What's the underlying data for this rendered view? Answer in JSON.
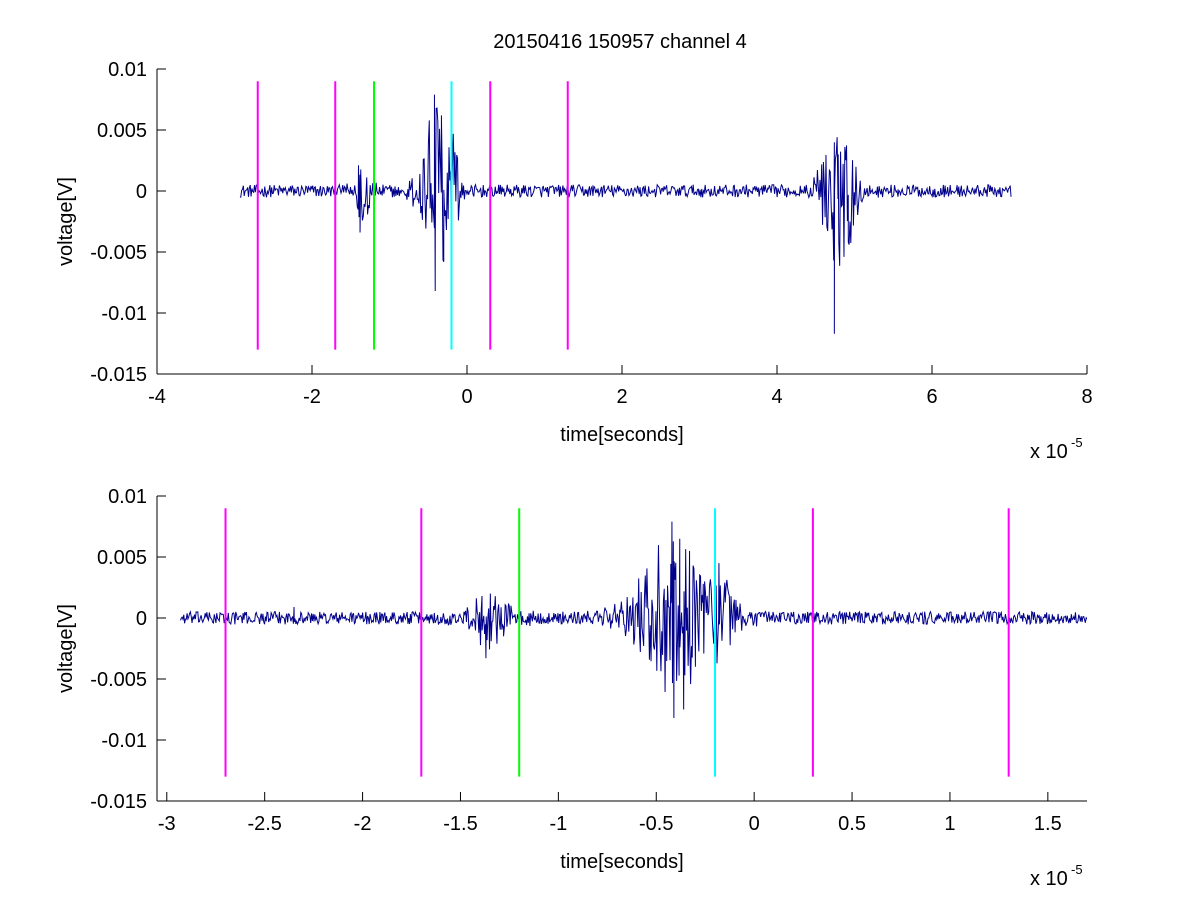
{
  "figure": {
    "title": "20150416 150957 channel 4",
    "background": "#ffffff"
  },
  "chart_data": [
    {
      "type": "line",
      "title": "20150416 150957 channel 4",
      "xlabel": "time[seconds]",
      "ylabel": "voltage[V]",
      "x_multiplier_label": "x 10",
      "x_multiplier_exponent": "-5",
      "xlim": [
        -4,
        8
      ],
      "ylim": [
        -0.015,
        0.01
      ],
      "xticks": [
        -4,
        -2,
        0,
        2,
        4,
        6,
        8
      ],
      "xtick_labels": [
        "-4",
        "-2",
        "0",
        "2",
        "4",
        "6",
        "8"
      ],
      "yticks": [
        0.01,
        0.005,
        0,
        -0.005,
        -0.01,
        -0.015
      ],
      "ytick_labels": [
        "0.01",
        "0.005",
        "0",
        "-0.005",
        "-0.01",
        "-0.015"
      ],
      "grid": false,
      "series": [
        {
          "color": "#00008b",
          "x_range": [
            -2.93,
            7.02
          ],
          "noise_amplitude": 0.0004,
          "bursts": [
            {
              "t": -1.35,
              "width": 0.2,
              "amp": 0.0025
            },
            {
              "t": -0.4,
              "width": 0.35,
              "amp": 0.0075
            },
            {
              "t": -0.15,
              "width": 0.1,
              "amp": 0.005
            },
            {
              "t": 4.8,
              "width": 0.35,
              "amp": 0.0065
            }
          ],
          "spikes": [
            {
              "x": -0.42,
              "y": 0.0079
            },
            {
              "x": -0.41,
              "y": -0.0082
            },
            {
              "x": -0.33,
              "y": 0.0062
            },
            {
              "x": -0.3,
              "y": -0.0058
            },
            {
              "x": -0.2,
              "y": -0.0067
            },
            {
              "x": -0.17,
              "y": 0.0028
            },
            {
              "x": -1.38,
              "y": -0.0034
            },
            {
              "x": -1.4,
              "y": 0.0021
            },
            {
              "x": 4.74,
              "y": 0.004
            },
            {
              "x": 4.74,
              "y": -0.0117
            },
            {
              "x": 4.79,
              "y": 0.003
            },
            {
              "x": 4.92,
              "y": -0.0042
            }
          ]
        }
      ],
      "vlines": [
        {
          "x": -2.7,
          "color": "#ff00ff"
        },
        {
          "x": -1.7,
          "color": "#ff00ff"
        },
        {
          "x": -1.2,
          "color": "#00ff00"
        },
        {
          "x": -0.2,
          "color": "#00ffff"
        },
        {
          "x": 0.3,
          "color": "#ff00ff"
        },
        {
          "x": 1.3,
          "color": "#ff00ff"
        }
      ],
      "vline_range": [
        -0.013,
        0.009
      ]
    },
    {
      "type": "line",
      "xlabel": "time[seconds]",
      "ylabel": "voltage[V]",
      "x_multiplier_label": "x 10",
      "x_multiplier_exponent": "-5",
      "xlim": [
        -3.05,
        1.7
      ],
      "ylim": [
        -0.015,
        0.01
      ],
      "xticks": [
        -3,
        -2.5,
        -2,
        -1.5,
        -1,
        -0.5,
        0,
        0.5,
        1,
        1.5
      ],
      "xtick_labels": [
        "-3",
        "-2.5",
        "-2",
        "-1.5",
        "-1",
        "-0.5",
        "0",
        "0.5",
        "1",
        "1.5"
      ],
      "yticks": [
        0.01,
        0.005,
        0,
        -0.005,
        -0.01,
        -0.015
      ],
      "ytick_labels": [
        "0.01",
        "0.005",
        "0",
        "-0.005",
        "-0.01",
        "-0.015"
      ],
      "grid": false,
      "series": [
        {
          "color": "#00008b",
          "x_range": [
            -2.93,
            1.7
          ],
          "noise_amplitude": 0.0004,
          "bursts": [
            {
              "t": -1.35,
              "width": 0.2,
              "amp": 0.0022
            },
            {
              "t": -0.4,
              "width": 0.35,
              "amp": 0.0065
            },
            {
              "t": -0.15,
              "width": 0.1,
              "amp": 0.0035
            }
          ],
          "spikes": [
            {
              "x": -2.35,
              "y": 0.0009
            },
            {
              "x": -1.39,
              "y": 0.0018
            },
            {
              "x": -1.37,
              "y": -0.0033
            },
            {
              "x": -1.28,
              "y": -0.0015
            },
            {
              "x": -0.42,
              "y": 0.0079
            },
            {
              "x": -0.41,
              "y": -0.0082
            },
            {
              "x": -0.38,
              "y": 0.0065
            },
            {
              "x": -0.36,
              "y": -0.0075
            },
            {
              "x": -0.33,
              "y": 0.0055
            },
            {
              "x": -0.3,
              "y": -0.004
            },
            {
              "x": -0.26,
              "y": 0.0028
            },
            {
              "x": -0.2,
              "y": -0.0067
            },
            {
              "x": -0.18,
              "y": 0.0045
            },
            {
              "x": -0.15,
              "y": 0.0029
            }
          ]
        }
      ],
      "vlines": [
        {
          "x": -2.7,
          "color": "#ff00ff"
        },
        {
          "x": -1.7,
          "color": "#ff00ff"
        },
        {
          "x": -1.2,
          "color": "#00ff00"
        },
        {
          "x": -0.2,
          "color": "#00ffff"
        },
        {
          "x": 0.3,
          "color": "#ff00ff"
        },
        {
          "x": 1.3,
          "color": "#ff00ff"
        }
      ],
      "vline_range": [
        -0.013,
        0.009
      ]
    }
  ]
}
